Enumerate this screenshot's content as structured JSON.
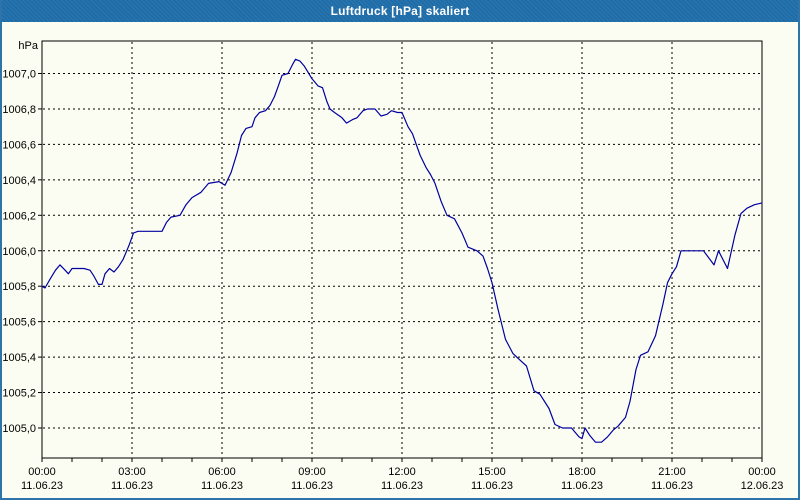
{
  "window": {
    "title": "Luftdruck [hPa] skaliert",
    "titlebar_color": "#1f6da8",
    "border_color": "#2d74ab",
    "background_color": "#fcfdf2"
  },
  "chart_data": {
    "type": "line",
    "title": "Luftdruck [hPa] skaliert",
    "ylabel": "hPa",
    "xlabel": "",
    "series_name": "Luftdruck",
    "line_color": "#0000a0",
    "grid": "dashed-black",
    "legend": "none",
    "ylim": [
      1004.83,
      1007.18
    ],
    "xlim_hours": [
      0,
      24
    ],
    "y_ticks": [
      1007.0,
      1006.8,
      1006.6,
      1006.4,
      1006.2,
      1006.0,
      1005.8,
      1005.6,
      1005.4,
      1005.2,
      1005.0
    ],
    "y_tick_labels": [
      "1007,0",
      "1006,8",
      "1006,6",
      "1006,4",
      "1006,2",
      "1006,0",
      "1005,8",
      "1005,6",
      "1005,4",
      "1005,2",
      "1005,0"
    ],
    "x_minor_tick_step_hours": 1,
    "x_major_ticks": [
      {
        "hour": 0,
        "time": "00:00",
        "date": "11.06.23"
      },
      {
        "hour": 3,
        "time": "03:00",
        "date": "11.06.23"
      },
      {
        "hour": 6,
        "time": "06:00",
        "date": "11.06.23"
      },
      {
        "hour": 9,
        "time": "09:00",
        "date": "11.06.23"
      },
      {
        "hour": 12,
        "time": "12:00",
        "date": "11.06.23"
      },
      {
        "hour": 15,
        "time": "15:00",
        "date": "11.06.23"
      },
      {
        "hour": 18,
        "time": "18:00",
        "date": "11.06.23"
      },
      {
        "hour": 21,
        "time": "21:00",
        "date": "11.06.23"
      },
      {
        "hour": 24,
        "time": "00:00",
        "date": "12.06.23"
      }
    ],
    "points": [
      [
        0.0,
        1005.8
      ],
      [
        0.1,
        1005.79
      ],
      [
        0.27,
        1005.84
      ],
      [
        0.45,
        1005.89
      ],
      [
        0.6,
        1005.92
      ],
      [
        0.77,
        1005.89
      ],
      [
        0.88,
        1005.87
      ],
      [
        1.0,
        1005.9
      ],
      [
        1.4,
        1005.9
      ],
      [
        1.6,
        1005.89
      ],
      [
        1.72,
        1005.86
      ],
      [
        1.88,
        1005.81
      ],
      [
        2.0,
        1005.81
      ],
      [
        2.1,
        1005.87
      ],
      [
        2.25,
        1005.9
      ],
      [
        2.4,
        1005.88
      ],
      [
        2.55,
        1005.91
      ],
      [
        2.7,
        1005.95
      ],
      [
        2.9,
        1006.03
      ],
      [
        3.05,
        1006.1
      ],
      [
        3.2,
        1006.11
      ],
      [
        4.0,
        1006.11
      ],
      [
        4.15,
        1006.16
      ],
      [
        4.3,
        1006.19
      ],
      [
        4.6,
        1006.2
      ],
      [
        4.8,
        1006.26
      ],
      [
        5.0,
        1006.3
      ],
      [
        5.3,
        1006.33
      ],
      [
        5.55,
        1006.38
      ],
      [
        5.9,
        1006.39
      ],
      [
        6.1,
        1006.37
      ],
      [
        6.3,
        1006.44
      ],
      [
        6.5,
        1006.55
      ],
      [
        6.65,
        1006.65
      ],
      [
        6.8,
        1006.69
      ],
      [
        7.0,
        1006.7
      ],
      [
        7.1,
        1006.75
      ],
      [
        7.25,
        1006.78
      ],
      [
        7.45,
        1006.79
      ],
      [
        7.6,
        1006.82
      ],
      [
        7.75,
        1006.87
      ],
      [
        7.9,
        1006.94
      ],
      [
        8.0,
        1006.99
      ],
      [
        8.2,
        1007.0
      ],
      [
        8.35,
        1007.05
      ],
      [
        8.45,
        1007.08
      ],
      [
        8.6,
        1007.07
      ],
      [
        8.75,
        1007.04
      ],
      [
        9.0,
        1006.97
      ],
      [
        9.2,
        1006.93
      ],
      [
        9.35,
        1006.92
      ],
      [
        9.5,
        1006.84
      ],
      [
        9.6,
        1006.8
      ],
      [
        9.75,
        1006.78
      ],
      [
        10.0,
        1006.75
      ],
      [
        10.15,
        1006.72
      ],
      [
        10.35,
        1006.74
      ],
      [
        10.5,
        1006.75
      ],
      [
        10.7,
        1006.79
      ],
      [
        10.85,
        1006.8
      ],
      [
        11.1,
        1006.8
      ],
      [
        11.3,
        1006.76
      ],
      [
        11.5,
        1006.77
      ],
      [
        11.65,
        1006.79
      ],
      [
        11.85,
        1006.78
      ],
      [
        12.0,
        1006.78
      ],
      [
        12.2,
        1006.7
      ],
      [
        12.35,
        1006.66
      ],
      [
        12.6,
        1006.54
      ],
      [
        12.8,
        1006.47
      ],
      [
        12.95,
        1006.43
      ],
      [
        13.1,
        1006.38
      ],
      [
        13.3,
        1006.28
      ],
      [
        13.5,
        1006.2
      ],
      [
        13.75,
        1006.18
      ],
      [
        14.0,
        1006.1
      ],
      [
        14.2,
        1006.02
      ],
      [
        14.5,
        1006.0
      ],
      [
        14.7,
        1005.97
      ],
      [
        14.85,
        1005.9
      ],
      [
        15.0,
        1005.82
      ],
      [
        15.2,
        1005.67
      ],
      [
        15.45,
        1005.5
      ],
      [
        15.7,
        1005.42
      ],
      [
        15.95,
        1005.38
      ],
      [
        16.15,
        1005.35
      ],
      [
        16.4,
        1005.21
      ],
      [
        16.6,
        1005.19
      ],
      [
        16.9,
        1005.11
      ],
      [
        17.1,
        1005.02
      ],
      [
        17.35,
        1005.0
      ],
      [
        17.65,
        1005.0
      ],
      [
        17.9,
        1004.95
      ],
      [
        18.0,
        1004.94
      ],
      [
        18.1,
        1005.0
      ],
      [
        18.25,
        1004.96
      ],
      [
        18.45,
        1004.92
      ],
      [
        18.65,
        1004.92
      ],
      [
        18.85,
        1004.95
      ],
      [
        19.05,
        1004.99
      ],
      [
        19.2,
        1005.01
      ],
      [
        19.45,
        1005.06
      ],
      [
        19.6,
        1005.15
      ],
      [
        19.8,
        1005.33
      ],
      [
        19.95,
        1005.41
      ],
      [
        20.2,
        1005.43
      ],
      [
        20.45,
        1005.52
      ],
      [
        20.7,
        1005.7
      ],
      [
        20.85,
        1005.82
      ],
      [
        21.0,
        1005.87
      ],
      [
        21.15,
        1005.91
      ],
      [
        21.3,
        1006.0
      ],
      [
        21.7,
        1006.0
      ],
      [
        22.05,
        1006.0
      ],
      [
        22.4,
        1005.92
      ],
      [
        22.55,
        1006.0
      ],
      [
        22.85,
        1005.9
      ],
      [
        23.1,
        1006.09
      ],
      [
        23.3,
        1006.21
      ],
      [
        23.5,
        1006.24
      ],
      [
        23.75,
        1006.26
      ],
      [
        24.0,
        1006.27
      ]
    ]
  }
}
